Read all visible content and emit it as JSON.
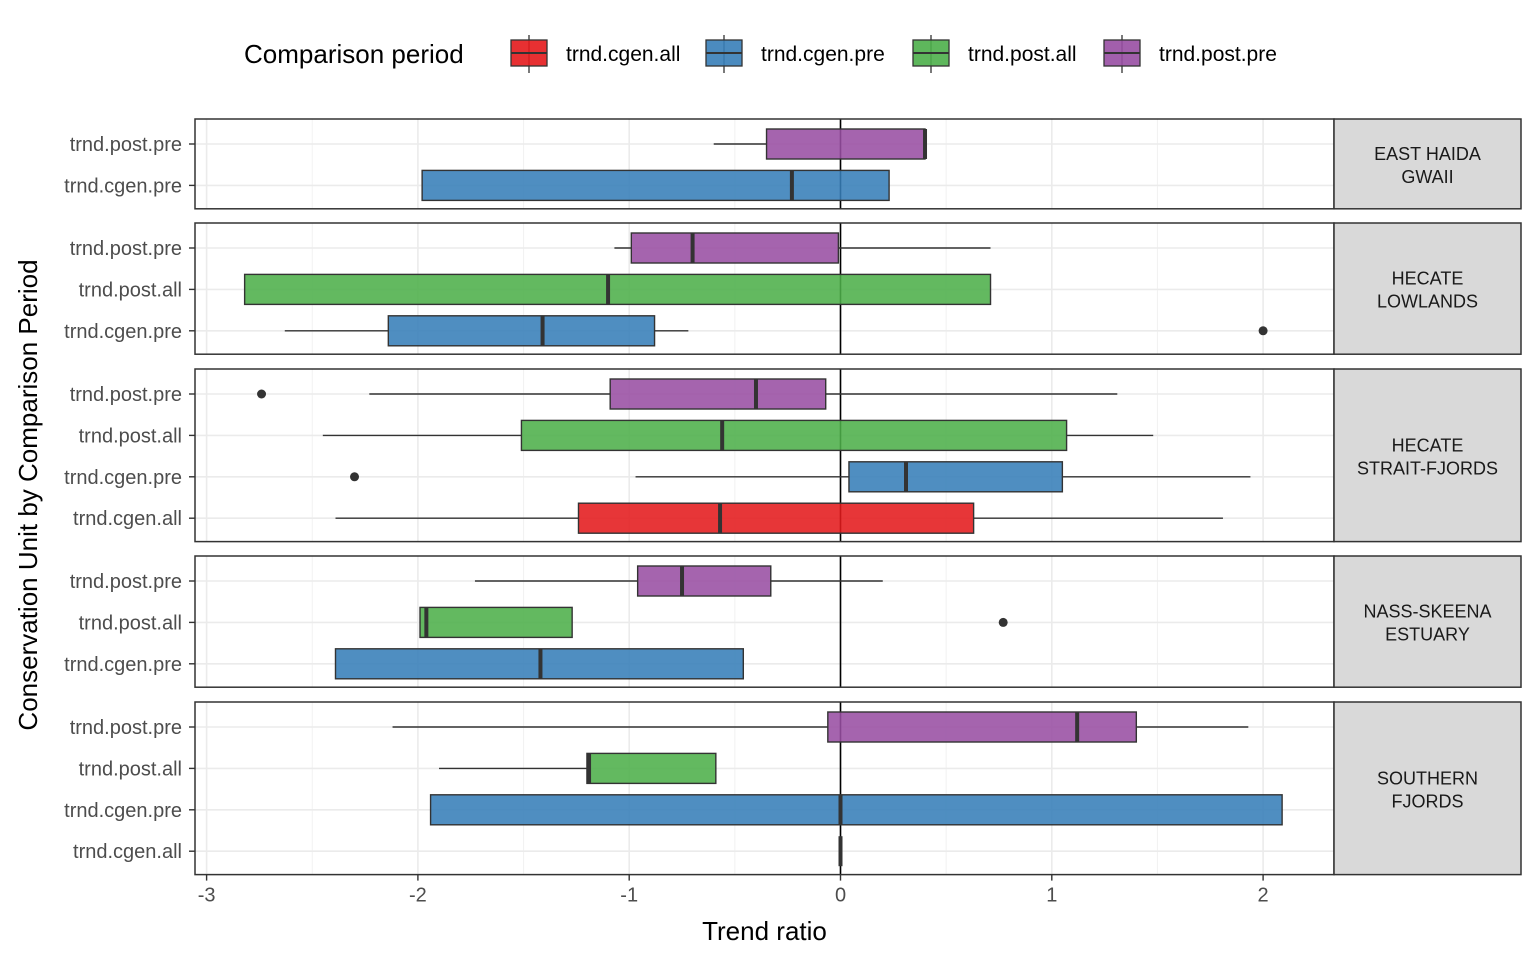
{
  "chart_data": {
    "type": "boxplot",
    "orientation": "horizontal",
    "facet": "rows",
    "xlabel": "Trend ratio",
    "ylabel": "Conservation Unit by Comparison Period",
    "xlim": [
      -3.1,
      2.35
    ],
    "xticks": [
      -3,
      -2,
      -1,
      0,
      1,
      2
    ],
    "reference_line_x": 0,
    "grid": true,
    "legend": {
      "title": "Comparison period",
      "placement": "top",
      "entries": [
        {
          "name": "trnd.cgen.all",
          "color": "#E41A1C"
        },
        {
          "name": "trnd.cgen.pre",
          "color": "#377EB8"
        },
        {
          "name": "trnd.post.all",
          "color": "#4DAF4A"
        },
        {
          "name": "trnd.post.pre",
          "color": "#984EA3"
        }
      ]
    },
    "panels": [
      {
        "strip": [
          "EAST HAIDA",
          "GWAII"
        ],
        "boxes": [
          {
            "group": "trnd.post.pre",
            "whisker_low": -0.6,
            "q1": -0.35,
            "median": 0.4,
            "q3": 0.4,
            "whisker_high": 0.4,
            "outliers": []
          },
          {
            "group": "trnd.cgen.pre",
            "whisker_low": -1.98,
            "q1": -1.98,
            "median": -0.23,
            "q3": 0.23,
            "whisker_high": 0.23,
            "outliers": []
          }
        ]
      },
      {
        "strip": [
          "HECATE",
          "LOWLANDS"
        ],
        "boxes": [
          {
            "group": "trnd.post.pre",
            "whisker_low": -1.07,
            "q1": -0.99,
            "median": -0.7,
            "q3": -0.01,
            "whisker_high": 0.71,
            "outliers": []
          },
          {
            "group": "trnd.post.all",
            "whisker_low": -2.82,
            "q1": -2.82,
            "median": -1.1,
            "q3": 0.71,
            "whisker_high": 0.71,
            "outliers": []
          },
          {
            "group": "trnd.cgen.pre",
            "whisker_low": -2.63,
            "q1": -2.14,
            "median": -1.41,
            "q3": -0.88,
            "whisker_high": -0.72,
            "outliers": [
              2.0
            ]
          }
        ]
      },
      {
        "strip": [
          "HECATE",
          "STRAIT-FJORDS"
        ],
        "boxes": [
          {
            "group": "trnd.post.pre",
            "whisker_low": -2.23,
            "q1": -1.09,
            "median": -0.4,
            "q3": -0.07,
            "whisker_high": 1.31,
            "outliers": [
              -2.74
            ]
          },
          {
            "group": "trnd.post.all",
            "whisker_low": -2.45,
            "q1": -1.51,
            "median": -0.56,
            "q3": 1.07,
            "whisker_high": 1.48,
            "outliers": []
          },
          {
            "group": "trnd.cgen.pre",
            "whisker_low": -0.97,
            "q1": 0.04,
            "median": 0.31,
            "q3": 1.05,
            "whisker_high": 1.94,
            "outliers": [
              -2.3
            ]
          },
          {
            "group": "trnd.cgen.all",
            "whisker_low": -2.39,
            "q1": -1.24,
            "median": -0.57,
            "q3": 0.63,
            "whisker_high": 1.81,
            "outliers": []
          }
        ]
      },
      {
        "strip": [
          "NASS-SKEENA",
          "ESTUARY"
        ],
        "boxes": [
          {
            "group": "trnd.post.pre",
            "whisker_low": -1.73,
            "q1": -0.96,
            "median": -0.75,
            "q3": -0.33,
            "whisker_high": 0.2,
            "outliers": []
          },
          {
            "group": "trnd.post.all",
            "whisker_low": -1.99,
            "q1": -1.99,
            "median": -1.96,
            "q3": -1.27,
            "whisker_high": -1.27,
            "outliers": [
              0.77
            ]
          },
          {
            "group": "trnd.cgen.pre",
            "whisker_low": -2.39,
            "q1": -2.39,
            "median": -1.42,
            "q3": -0.46,
            "whisker_high": -0.46,
            "outliers": []
          }
        ]
      },
      {
        "strip": [
          "SOUTHERN",
          "FJORDS"
        ],
        "boxes": [
          {
            "group": "trnd.post.pre",
            "whisker_low": -2.12,
            "q1": -0.06,
            "median": 1.12,
            "q3": 1.4,
            "whisker_high": 1.93,
            "outliers": []
          },
          {
            "group": "trnd.post.all",
            "whisker_low": -1.9,
            "q1": -1.2,
            "median": -1.19,
            "q3": -0.59,
            "whisker_high": -0.59,
            "outliers": []
          },
          {
            "group": "trnd.cgen.pre",
            "whisker_low": -1.94,
            "q1": -1.94,
            "median": 0.0,
            "q3": 2.09,
            "whisker_high": 2.09,
            "outliers": []
          },
          {
            "group": "trnd.cgen.all",
            "whisker_low": 0.0,
            "q1": 0.0,
            "median": 0.0,
            "q3": 0.0,
            "whisker_high": 0.0,
            "outliers": []
          }
        ]
      }
    ]
  }
}
